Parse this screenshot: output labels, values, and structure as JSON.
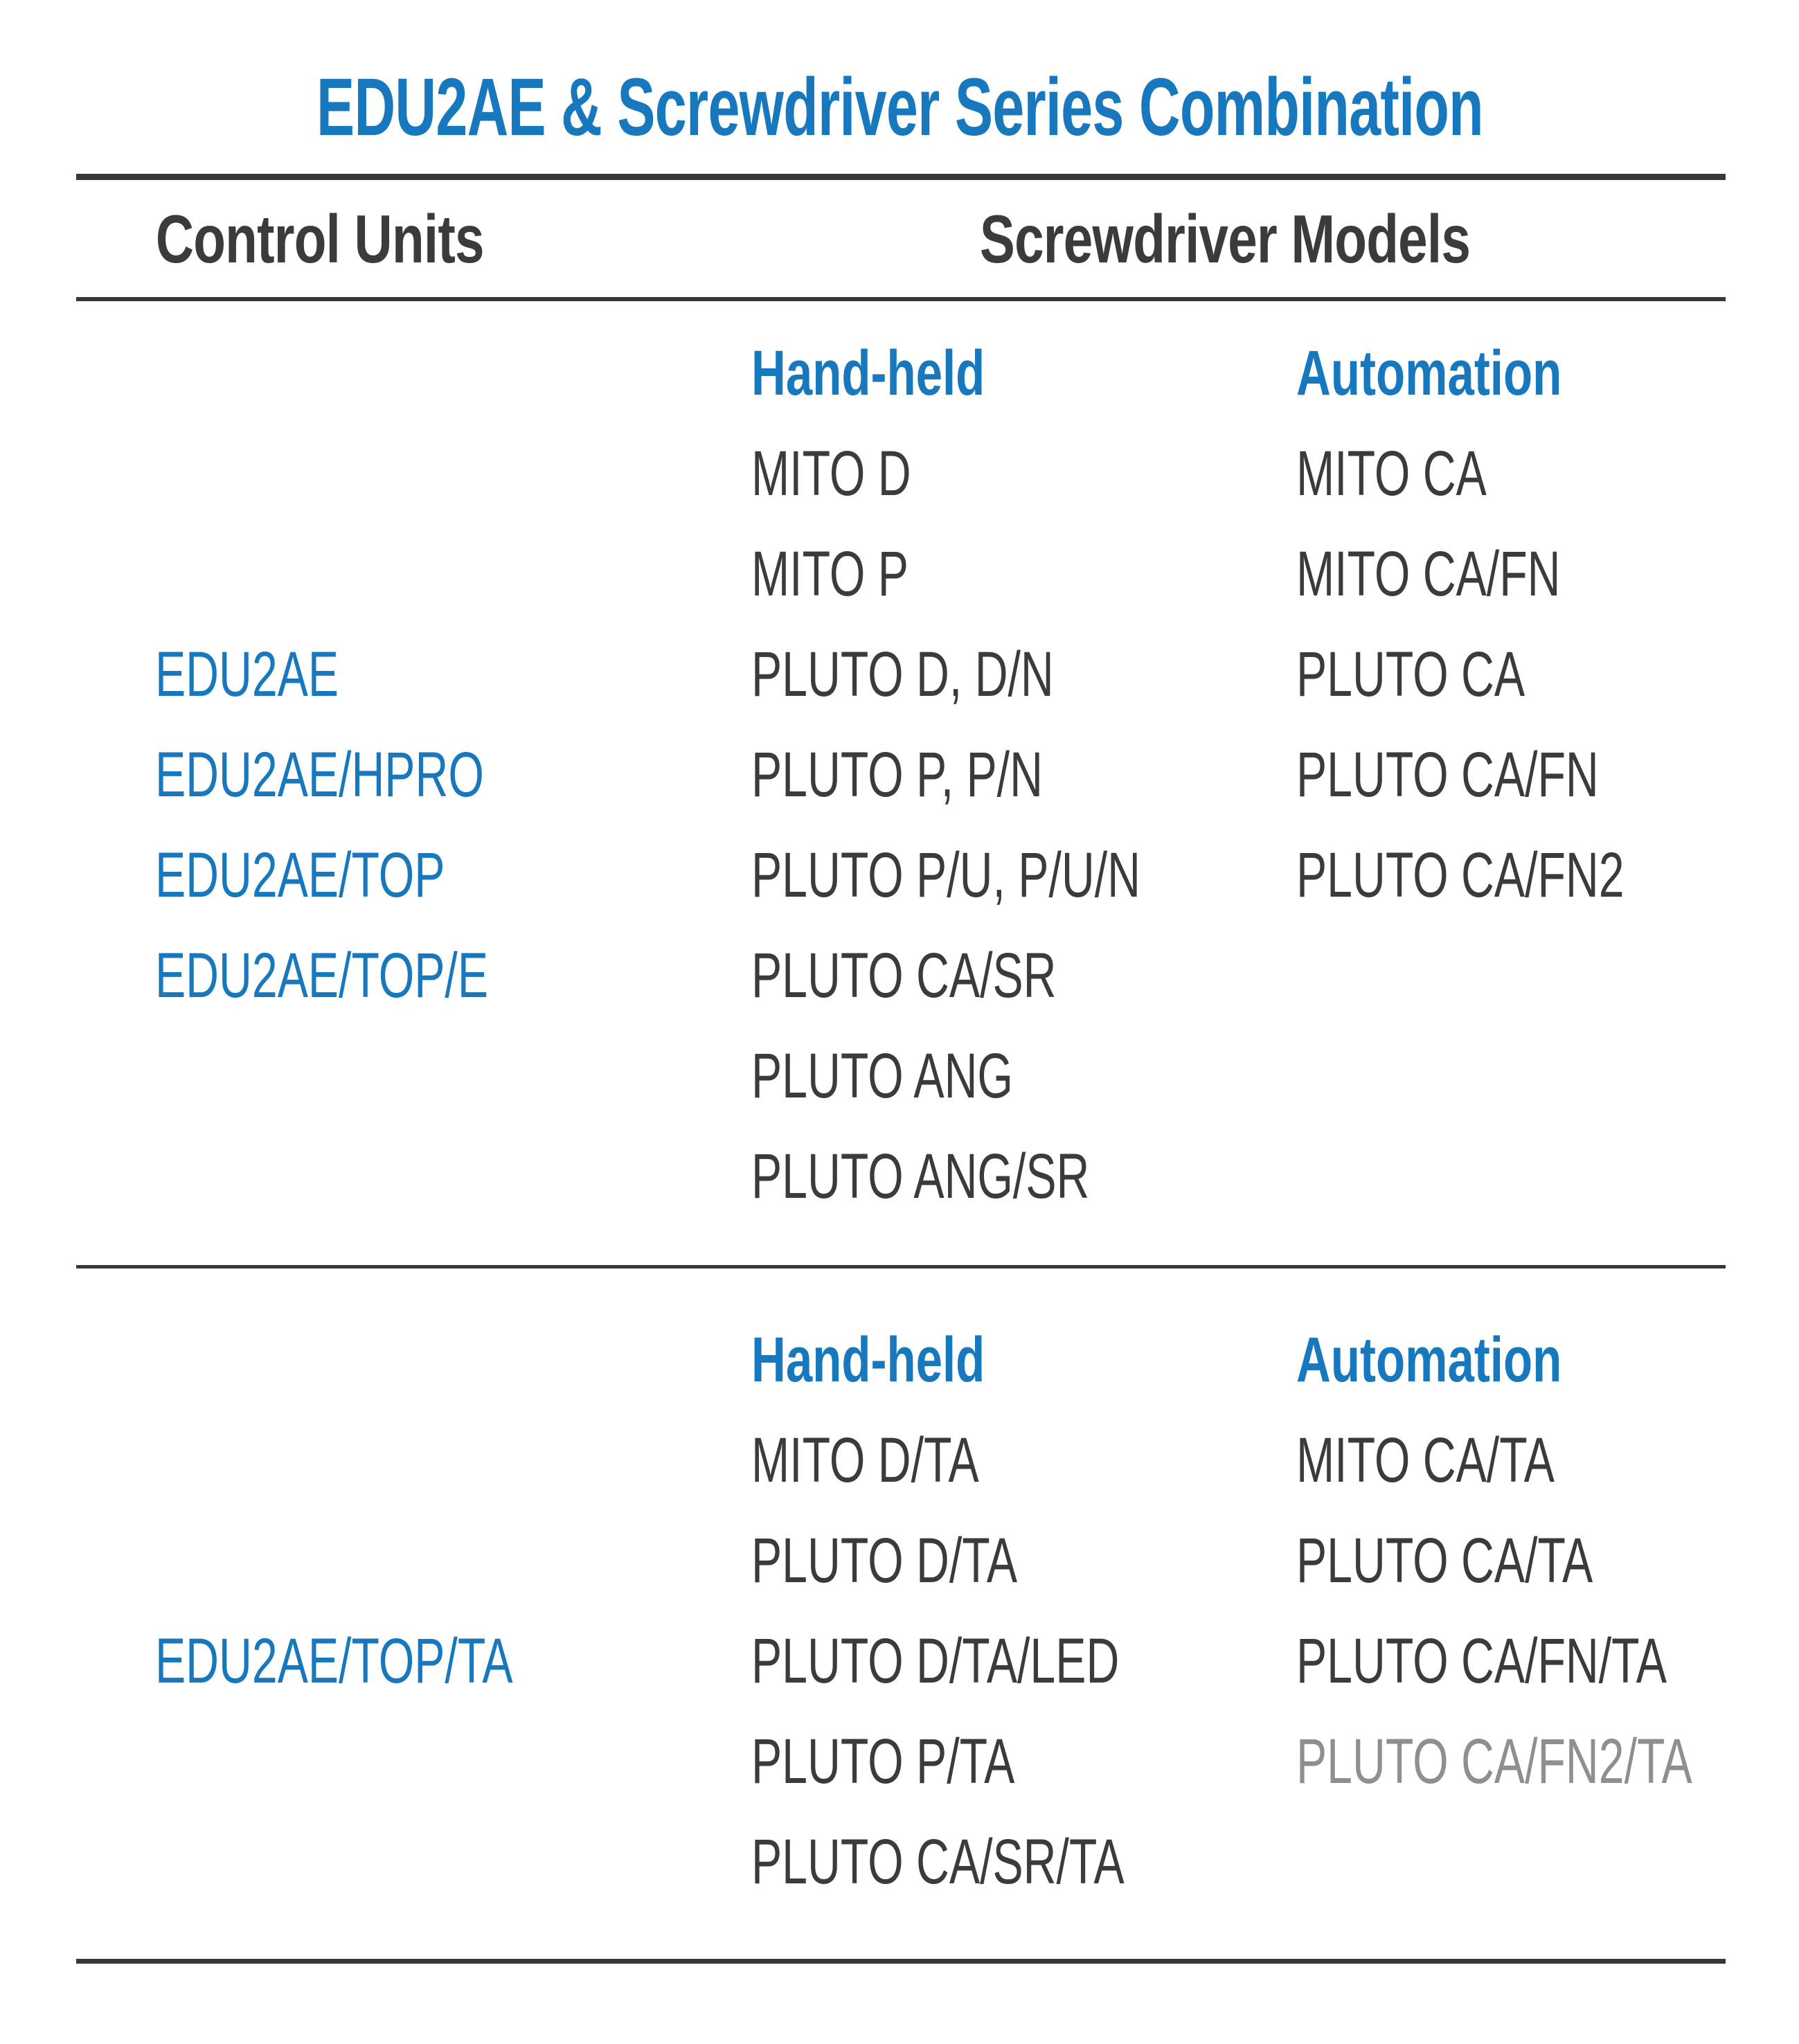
{
  "title": "EDU2AE & Screwdriver Series Combination",
  "colors": {
    "accent_blue": "#1778BE",
    "text_dark": "#3B3B3B",
    "muted_gray": "#8F8F8F",
    "rule_dark": "#383838"
  },
  "table": {
    "column_headers": {
      "control_units": "Control Units",
      "screwdriver_models": "Screwdriver Models"
    },
    "sections": [
      {
        "control_units": [
          "EDU2AE",
          "EDU2AE/HPRO",
          "EDU2AE/TOP",
          "EDU2AE/TOP/E"
        ],
        "hand_held": {
          "label": "Hand-held",
          "items": [
            "MITO D",
            "MITO P",
            "PLUTO D, D/N",
            "PLUTO P, P/N",
            "PLUTO P/U, P/U/N",
            "PLUTO CA/SR",
            "PLUTO ANG",
            "PLUTO ANG/SR"
          ]
        },
        "automation": {
          "label": "Automation",
          "items": [
            "MITO CA",
            "MITO CA/FN",
            "PLUTO CA",
            "PLUTO CA/FN",
            "PLUTO CA/FN2"
          ]
        }
      },
      {
        "control_units": [
          "EDU2AE/TOP/TA"
        ],
        "hand_held": {
          "label": "Hand-held",
          "items": [
            "MITO D/TA",
            "PLUTO D/TA",
            "PLUTO D/TA/LED",
            "PLUTO P/TA",
            "PLUTO CA/SR/TA"
          ]
        },
        "automation": {
          "label": "Automation",
          "items": [
            "MITO CA/TA",
            "PLUTO CA/TA",
            "PLUTO CA/FN/TA",
            "PLUTO CA/FN2/TA"
          ],
          "muted_item": "PLUTO CA/FN2/TA"
        }
      }
    ]
  }
}
